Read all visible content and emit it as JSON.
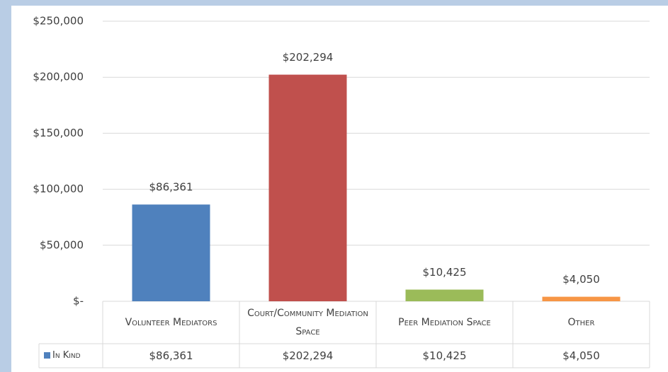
{
  "chart_data": {
    "type": "bar",
    "categories": [
      "Volunteer Mediators",
      "Court/Community Mediation Space",
      "Peer Mediation Space",
      "Other"
    ],
    "series": [
      {
        "name": "In Kind",
        "color": "#4f81bd",
        "colors": [
          "#4f81bd",
          "#c0504d",
          "#9bbb59",
          "#f79646"
        ],
        "values": [
          86361,
          202294,
          10425,
          4050
        ],
        "value_labels": [
          "$86,361",
          "$202,294",
          "$10,425",
          "$4,050"
        ]
      }
    ],
    "ylim": [
      0,
      250000
    ],
    "yticks": [
      {
        "value": 0,
        "label": "$-"
      },
      {
        "value": 50000,
        "label": "$50,000"
      },
      {
        "value": 100000,
        "label": "$100,000"
      },
      {
        "value": 150000,
        "label": "$150,000"
      },
      {
        "value": 200000,
        "label": "$200,000"
      },
      {
        "value": 250000,
        "label": "$250,000"
      }
    ],
    "grid": true
  }
}
